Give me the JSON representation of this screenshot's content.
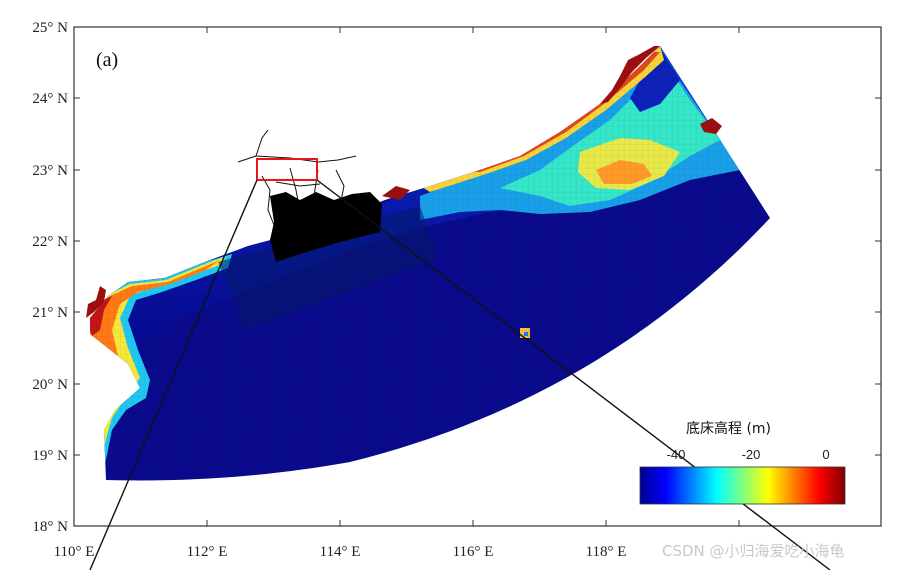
{
  "panel_label": "(a)",
  "lat_labels": [
    "25° N",
    "24° N",
    "23° N",
    "22° N",
    "21° N",
    "20° N",
    "19° N",
    "18° N"
  ],
  "lon_labels": [
    "110° E",
    "112° E",
    "114° E",
    "116° E",
    "118° E"
  ],
  "colorbar": {
    "title": "底床高程 (m)",
    "ticks": [
      "-40",
      "-20",
      "0"
    ],
    "colors": [
      "#00008f",
      "#0000ff",
      "#007fff",
      "#00ffff",
      "#7fff7f",
      "#ffff00",
      "#ff7f00",
      "#ff0000",
      "#800000"
    ]
  },
  "watermark": "CSDN @小归海爱吃小海龟",
  "map": {
    "extent_lon": [
      110,
      120.5
    ],
    "extent_lat": [
      18,
      25
    ],
    "zoom_box_color": "#e8141e",
    "deep_color": "#0a0a8c",
    "land_color": "#000000"
  }
}
